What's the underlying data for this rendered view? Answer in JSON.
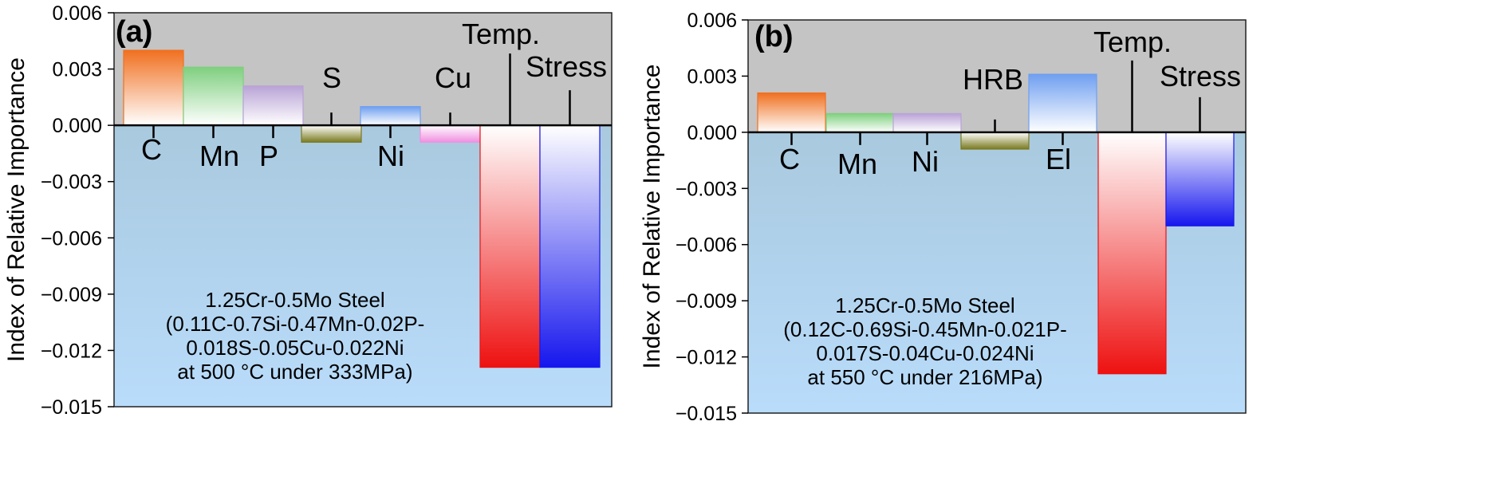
{
  "chart_data": [
    {
      "type": "bar",
      "panel_label": "(a)",
      "ylabel": "Index of Relative Importance",
      "ylim": [
        -0.015,
        0.006
      ],
      "yticks": [
        "0.006",
        "0.003",
        "0.000",
        "−0.003",
        "−0.006",
        "−0.009",
        "−0.012",
        "−0.015"
      ],
      "categories": [
        "C",
        "Mn",
        "P",
        "S",
        "Ni",
        "Cu",
        "Temp.",
        "Stress"
      ],
      "values": [
        0.004,
        0.0031,
        0.0021,
        -0.0009,
        0.001,
        -0.0009,
        -0.0129,
        -0.0129
      ],
      "colors": [
        "#f07020",
        "#7fcf7f",
        "#b9a3d6",
        "#7a7a20",
        "#6f9ff0",
        "#f08fe0",
        "#ee1111",
        "#1616ee"
      ],
      "note": [
        "1.25Cr-0.5Mo Steel",
        "(0.11C-0.7Si-0.47Mn-0.02P-",
        "0.018S-0.05Cu-0.022Ni",
        "at 500 °C under 333MPa)"
      ]
    },
    {
      "type": "bar",
      "panel_label": "(b)",
      "ylabel": "Index of Relative Importance",
      "ylim": [
        -0.015,
        0.006
      ],
      "yticks": [
        "0.006",
        "0.003",
        "0.000",
        "−0.003",
        "−0.006",
        "−0.009",
        "−0.012",
        "−0.015"
      ],
      "categories": [
        "C",
        "Mn",
        "Ni",
        "HRB",
        "El",
        "Temp.",
        "Stress"
      ],
      "values": [
        0.0021,
        0.001,
        0.001,
        -0.0009,
        0.0031,
        -0.0129,
        -0.005
      ],
      "colors": [
        "#f07020",
        "#7fcf7f",
        "#b9a3d6",
        "#7a7a20",
        "#6f9ff0",
        "#ee1111",
        "#1616ee"
      ],
      "note": [
        "1.25Cr-0.5Mo Steel",
        "(0.12C-0.69Si-0.45Mn-0.021P-",
        "0.017S-0.04Cu-0.024Ni",
        "at 550 °C under 216MPa)"
      ]
    }
  ]
}
